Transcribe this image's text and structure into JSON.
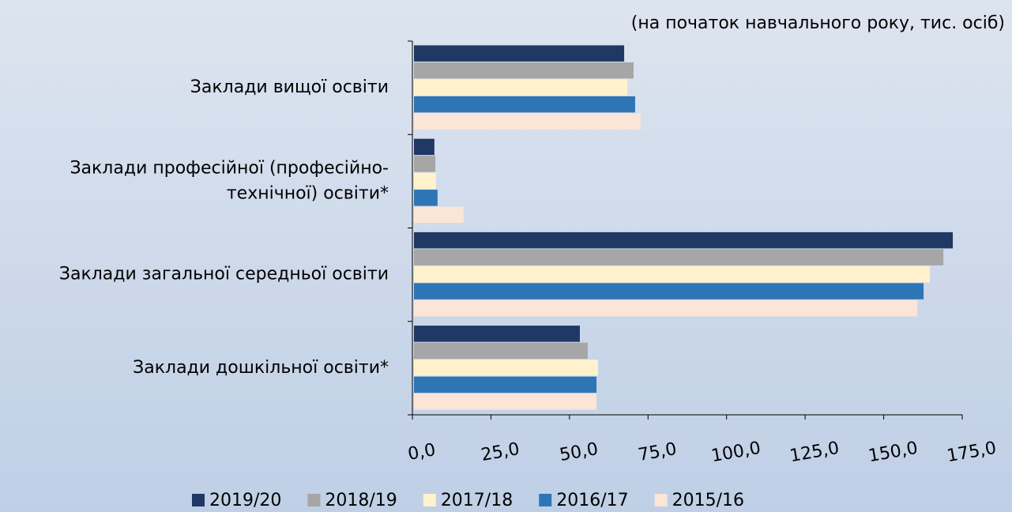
{
  "chart_data": {
    "type": "hbar",
    "subtitle": "(на початок навчального року,  тис. осіб)",
    "categories": [
      "Заклади вищої освіти",
      "Заклади професійної (професійно-\nтехнічної) освіти*",
      "Заклади загальної середньої освіти",
      "Заклади дошкільної освіти*"
    ],
    "series": [
      {
        "name": "2019/20",
        "color": "#1f3864",
        "values": [
          66.9,
          6.5,
          171.5,
          52.8
        ]
      },
      {
        "name": "2018/19",
        "color": "#a6a6a6",
        "values": [
          69.9,
          6.8,
          168.5,
          55.3
        ]
      },
      {
        "name": "2017/18",
        "color": "#fff2cc",
        "values": [
          67.9,
          7.0,
          164.2,
          58.6
        ]
      },
      {
        "name": "2016/17",
        "color": "#2e75b6",
        "values": [
          70.4,
          7.5,
          162.2,
          58.1
        ]
      },
      {
        "name": "2015/16",
        "color": "#fbe5d6",
        "values": [
          72.2,
          15.8,
          160.2,
          58.1
        ]
      }
    ],
    "xlim": [
      0,
      175
    ],
    "xticks": [
      {
        "value": 0,
        "label": "0,0"
      },
      {
        "value": 25,
        "label": "25,0"
      },
      {
        "value": 50,
        "label": "50,0"
      },
      {
        "value": 75,
        "label": "75,0"
      },
      {
        "value": 100,
        "label": "100,0"
      },
      {
        "value": 125,
        "label": "125,0"
      },
      {
        "value": 150,
        "label": "150,0"
      },
      {
        "value": 175,
        "label": "175,0"
      }
    ],
    "legend": "bottom"
  }
}
